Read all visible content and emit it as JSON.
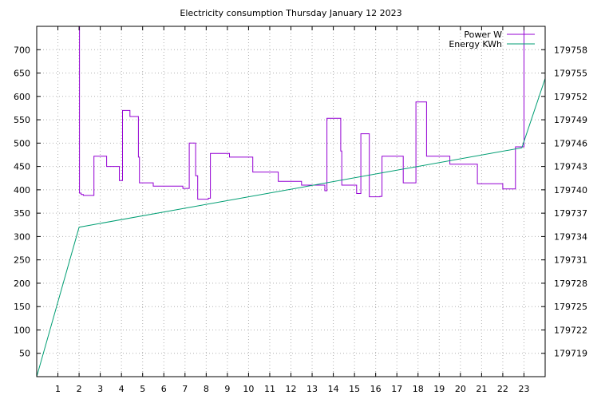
{
  "chart_data": {
    "type": "line",
    "title": "Electricity consumption Thursday January 12 2023",
    "xlabel": "",
    "ylabel": "",
    "y2label": "",
    "grid": true,
    "legend_position": "top-right",
    "xlim": [
      0,
      24
    ],
    "ylim": [
      0,
      750
    ],
    "y2lim": [
      179716,
      179761
    ],
    "x_ticks": [
      1,
      2,
      3,
      4,
      5,
      6,
      7,
      8,
      9,
      10,
      11,
      12,
      13,
      14,
      15,
      16,
      17,
      18,
      19,
      20,
      21,
      22,
      23
    ],
    "y_ticks": [
      50,
      100,
      150,
      200,
      250,
      300,
      350,
      400,
      450,
      500,
      550,
      600,
      650,
      700
    ],
    "y2_ticks": [
      179719,
      179722,
      179725,
      179728,
      179731,
      179734,
      179737,
      179740,
      179743,
      179746,
      179749,
      179752,
      179755,
      179758
    ],
    "series": [
      {
        "name": "Power W",
        "axis": "y",
        "color": "#9400d3",
        "step": true,
        "x": [
          2.0,
          2.02,
          2.1,
          2.2,
          2.7,
          3.3,
          3.9,
          4.05,
          4.4,
          4.8,
          4.85,
          5.5,
          6.9,
          7.2,
          7.5,
          7.6,
          8.1,
          8.2,
          9.1,
          10.2,
          11.4,
          12.5,
          13.6,
          13.7,
          14.35,
          14.4,
          15.1,
          15.3,
          15.7,
          16.2,
          16.3,
          17.3,
          17.9,
          18.4,
          19.5,
          20.8,
          22.0,
          22.6,
          23.0
        ],
        "y": [
          750,
          393,
          390,
          388,
          472,
          450,
          420,
          570,
          557,
          470,
          415,
          408,
          403,
          500,
          430,
          380,
          382,
          478,
          470,
          438,
          418,
          410,
          398,
          553,
          483,
          410,
          392,
          520,
          385,
          386,
          472,
          415,
          588,
          472,
          455,
          413,
          402,
          492,
          750
        ]
      },
      {
        "name": "Energy KWh",
        "axis": "y2",
        "color": "#009e73",
        "step": false,
        "x": [
          0,
          2.0,
          22.9,
          24
        ],
        "y": [
          179716,
          179735.2,
          179745.4,
          179754.3
        ]
      }
    ]
  }
}
